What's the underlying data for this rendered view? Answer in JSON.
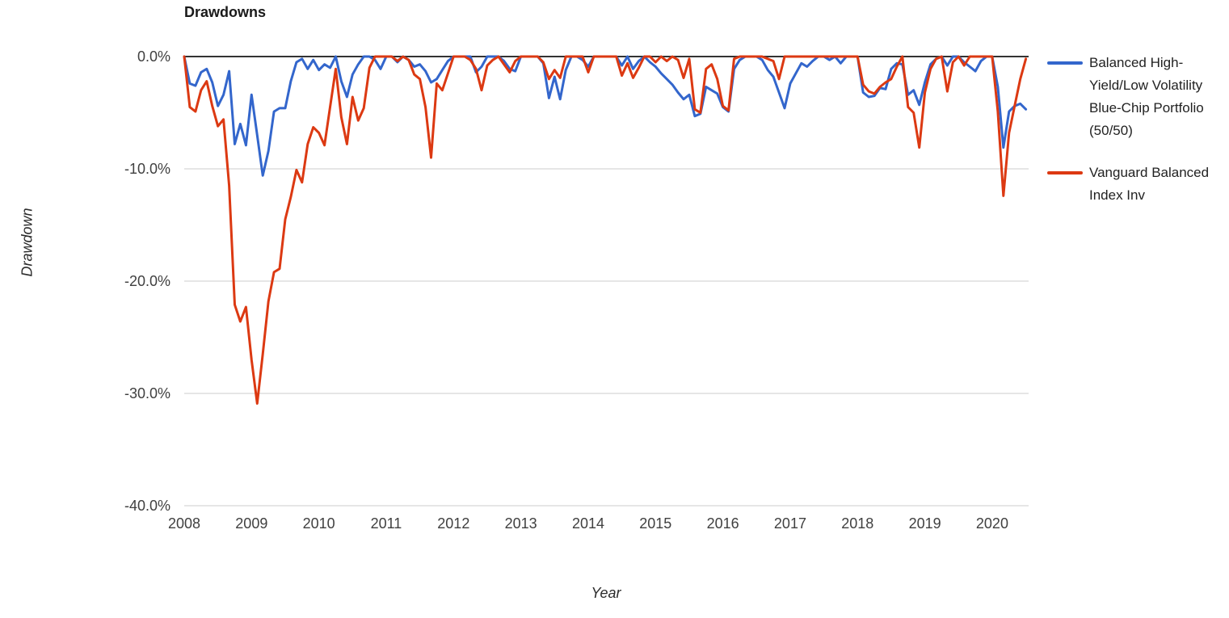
{
  "title": "Drawdowns",
  "y_axis": {
    "title": "Drawdown",
    "tick_labels": [
      "0.0%",
      "-10.0%",
      "-20.0%",
      "-30.0%",
      "-40.0%"
    ],
    "tick_values": [
      0,
      -10,
      -20,
      -30,
      -40
    ]
  },
  "x_axis": {
    "title": "Year",
    "tick_labels": [
      "2008",
      "2009",
      "2010",
      "2011",
      "2012",
      "2013",
      "2014",
      "2015",
      "2016",
      "2017",
      "2018",
      "2019",
      "2020"
    ]
  },
  "legend": [
    {
      "label": "Balanced High-Yield/Low Volatility Blue-Chip Portfolio (50/50)",
      "color": "#3366cc"
    },
    {
      "label": "Vanguard Balanced Index Inv",
      "color": "#dc3912"
    }
  ],
  "colors": {
    "grid": "#cccccc",
    "zero_line": "#333333",
    "tick_text": "#404040",
    "series_blue": "#3366cc",
    "series_red": "#dc3912"
  },
  "chart_data": {
    "type": "line",
    "title": "Drawdowns",
    "xlabel": "Year",
    "ylabel": "Drawdown",
    "x_start": "2008-01",
    "x_end": "2020-07",
    "frequency": "monthly",
    "x_tick_years": [
      2008,
      2009,
      2010,
      2011,
      2012,
      2013,
      2014,
      2015,
      2016,
      2017,
      2018,
      2019,
      2020
    ],
    "y_ticks_pct": [
      0,
      -10,
      -20,
      -30,
      -40
    ],
    "ylim": [
      -40,
      0
    ],
    "unit": "percent_drawdown",
    "grid": true,
    "legend_position": "right",
    "series": [
      {
        "name": "Balanced High-Yield/Low Volatility Blue-Chip Portfolio (50/50)",
        "color": "#3366cc",
        "values": [
          0.0,
          -2.4,
          -2.6,
          -1.4,
          -1.1,
          -2.3,
          -4.4,
          -3.4,
          -1.3,
          -7.8,
          -6.0,
          -7.9,
          -3.4,
          -7.0,
          -10.6,
          -8.4,
          -4.9,
          -4.6,
          -4.6,
          -2.2,
          -0.5,
          -0.2,
          -1.1,
          -0.3,
          -1.2,
          -0.7,
          -1.0,
          0.0,
          -2.2,
          -3.6,
          -1.6,
          -0.7,
          0.0,
          0.0,
          -0.3,
          -1.1,
          0.0,
          0.0,
          -0.5,
          0.0,
          -0.3,
          -0.9,
          -0.7,
          -1.3,
          -2.3,
          -2.0,
          -1.2,
          -0.4,
          0.0,
          0.0,
          0.0,
          0.0,
          -1.4,
          -0.9,
          0.0,
          0.0,
          0.0,
          -0.4,
          -1.1,
          -1.3,
          0.0,
          0.0,
          0.0,
          0.0,
          -0.6,
          -3.7,
          -1.8,
          -3.8,
          -1.2,
          0.0,
          0.0,
          -0.3,
          -0.9,
          0.0,
          0.0,
          0.0,
          0.0,
          0.0,
          -0.8,
          0.0,
          -1.1,
          -0.4,
          0.0,
          -0.5,
          -0.9,
          -1.5,
          -2.0,
          -2.5,
          -3.2,
          -3.8,
          -3.4,
          -5.3,
          -5.1,
          -2.7,
          -3.0,
          -3.3,
          -4.5,
          -4.9,
          -1.1,
          -0.3,
          0.0,
          0.0,
          0.0,
          -0.3,
          -1.2,
          -1.8,
          -3.2,
          -4.6,
          -2.4,
          -1.5,
          -0.6,
          -0.9,
          -0.4,
          0.0,
          0.0,
          -0.3,
          0.0,
          -0.6,
          0.0,
          0.0,
          0.0,
          -3.2,
          -3.6,
          -3.5,
          -2.8,
          -2.9,
          -1.1,
          -0.6,
          -0.7,
          -3.4,
          -3.0,
          -4.3,
          -2.3,
          -0.7,
          -0.2,
          0.0,
          -0.8,
          0.0,
          0.0,
          -0.5,
          -0.9,
          -1.3,
          -0.4,
          0.0,
          0.0,
          -2.7,
          -8.1,
          -4.9,
          -4.4,
          -4.2,
          -4.7
        ]
      },
      {
        "name": "Vanguard Balanced Index Inv",
        "color": "#dc3912",
        "values": [
          0.0,
          -4.5,
          -4.9,
          -3.0,
          -2.2,
          -4.4,
          -6.2,
          -5.6,
          -11.5,
          -22.1,
          -23.6,
          -22.3,
          -27.0,
          -30.9,
          -26.5,
          -21.8,
          -19.2,
          -18.9,
          -14.5,
          -12.5,
          -10.1,
          -11.2,
          -7.8,
          -6.3,
          -6.8,
          -7.9,
          -4.5,
          -1.1,
          -5.4,
          -7.8,
          -3.6,
          -5.7,
          -4.6,
          -1.0,
          0.0,
          0.0,
          0.0,
          0.0,
          -0.4,
          0.0,
          -0.3,
          -1.6,
          -2.0,
          -4.5,
          -9.0,
          -2.4,
          -3.0,
          -1.5,
          0.0,
          0.0,
          0.0,
          -0.3,
          -1.1,
          -3.0,
          -0.8,
          -0.3,
          0.0,
          -0.7,
          -1.4,
          -0.4,
          0.0,
          0.0,
          0.0,
          0.0,
          -0.5,
          -2.0,
          -1.2,
          -1.9,
          0.0,
          0.0,
          0.0,
          0.0,
          -1.4,
          0.0,
          0.0,
          0.0,
          0.0,
          0.0,
          -1.7,
          -0.6,
          -1.9,
          -1.0,
          0.0,
          0.0,
          -0.5,
          0.0,
          -0.4,
          0.0,
          -0.3,
          -1.9,
          -0.2,
          -4.7,
          -5.0,
          -1.1,
          -0.7,
          -2.0,
          -4.4,
          -4.8,
          -0.2,
          0.0,
          0.0,
          0.0,
          0.0,
          0.0,
          -0.2,
          -0.4,
          -2.0,
          0.0,
          0.0,
          0.0,
          0.0,
          0.0,
          0.0,
          0.0,
          0.0,
          0.0,
          0.0,
          0.0,
          0.0,
          0.0,
          0.0,
          -2.5,
          -3.1,
          -3.3,
          -2.7,
          -2.3,
          -2.0,
          -0.9,
          0.0,
          -4.5,
          -5.0,
          -8.1,
          -3.2,
          -1.1,
          -0.2,
          0.0,
          -3.1,
          -0.5,
          0.0,
          -0.8,
          0.0,
          0.0,
          0.0,
          0.0,
          0.0,
          -4.9,
          -12.4,
          -6.8,
          -4.4,
          -2.0,
          -0.2
        ]
      }
    ]
  }
}
